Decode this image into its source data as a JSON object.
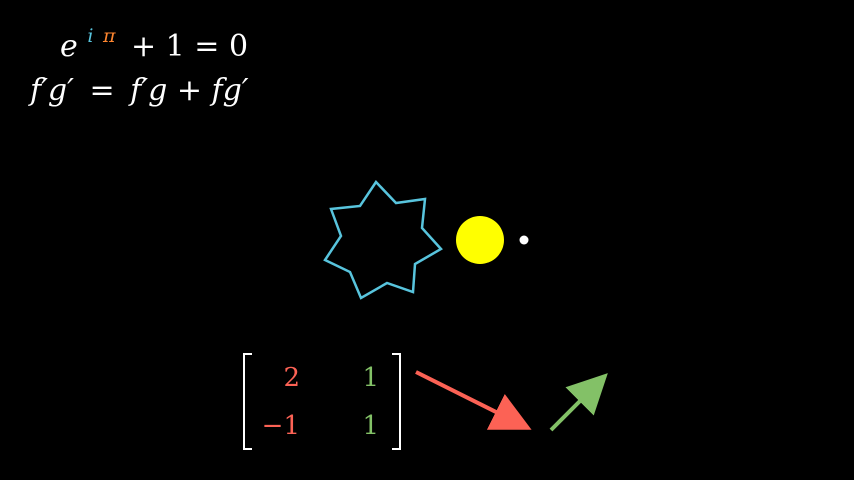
{
  "equations": {
    "euler": {
      "base": "e",
      "exp_i": "i",
      "exp_pi": "π",
      "rest": "+ 1 = 0"
    },
    "product_rule": {
      "lhs": "f′g′",
      "equals": "=",
      "rhs": "f′g + fg′"
    }
  },
  "matrix": {
    "rows": [
      [
        "2",
        "1"
      ],
      [
        "−1",
        "1"
      ]
    ]
  },
  "colors": {
    "background": "#000000",
    "text": "#FFFFFF",
    "exponent_i": "#58C4DD",
    "exponent_pi": "#FF862F",
    "star": "#58C4DD",
    "dot": "#FFFF00",
    "small_dot": "#FFFFFF",
    "column_1": "#FC6255",
    "column_2": "#83C167",
    "vector_1": "#FC6255",
    "vector_2": "#83C167"
  },
  "shapes": {
    "star_icon": "seven-point-star-icon",
    "dot_icon": "yellow-dot-icon",
    "small_dot_icon": "white-dot-icon",
    "vector_1_icon": "arrow-icon",
    "vector_2_icon": "arrow-icon"
  }
}
